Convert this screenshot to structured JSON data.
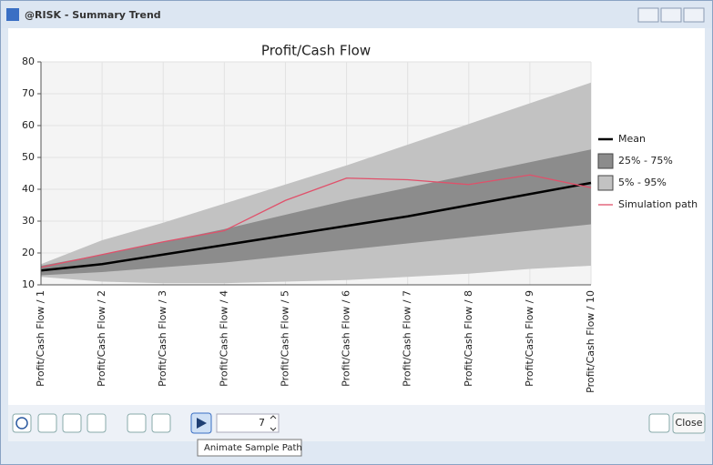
{
  "window": {
    "title": "@RISK - Summary Trend"
  },
  "chart_data": {
    "type": "trend",
    "title": "Profit/Cash Flow",
    "categories": [
      "Profit/Cash Flow / 1",
      "Profit/Cash Flow / 2",
      "Profit/Cash Flow / 3",
      "Profit/Cash Flow / 4",
      "Profit/Cash Flow / 5",
      "Profit/Cash Flow / 6",
      "Profit/Cash Flow / 7",
      "Profit/Cash Flow / 8",
      "Profit/Cash Flow / 9",
      "Profit/Cash Flow / 10"
    ],
    "ylim": [
      10,
      80
    ],
    "yticks": [
      10,
      20,
      30,
      40,
      50,
      60,
      70,
      80
    ],
    "grid": true,
    "series": [
      {
        "name": "Mean",
        "color": "#000000",
        "values": [
          14.5,
          16.5,
          19.5,
          22.5,
          25.5,
          28.5,
          31.5,
          35,
          38.5,
          42
        ]
      },
      {
        "name": "25% - 75%",
        "color": "#8c8c8c",
        "low": [
          13,
          14,
          15.5,
          17,
          19,
          21,
          23,
          25,
          27,
          29
        ],
        "high": [
          16,
          19.5,
          23.5,
          27.5,
          32,
          36.5,
          40.5,
          44.5,
          48.5,
          52.5
        ]
      },
      {
        "name": "5% - 95%",
        "color": "#c2c2c2",
        "low": [
          12.5,
          11,
          10.5,
          10.5,
          11,
          11.5,
          12.5,
          13.5,
          15,
          16
        ],
        "high": [
          16.5,
          24,
          29.5,
          35.5,
          41.5,
          47.5,
          54,
          60.5,
          67,
          73.5
        ]
      },
      {
        "name": "Simulation path",
        "color": "#e0506a",
        "values": [
          15.5,
          19.5,
          23.5,
          27,
          36.5,
          43.5,
          43,
          41.5,
          44.5,
          40.5
        ]
      }
    ]
  },
  "toolbar": {
    "sample_index": 7,
    "tooltip": "Animate Sample Path",
    "close_button": "Close"
  }
}
